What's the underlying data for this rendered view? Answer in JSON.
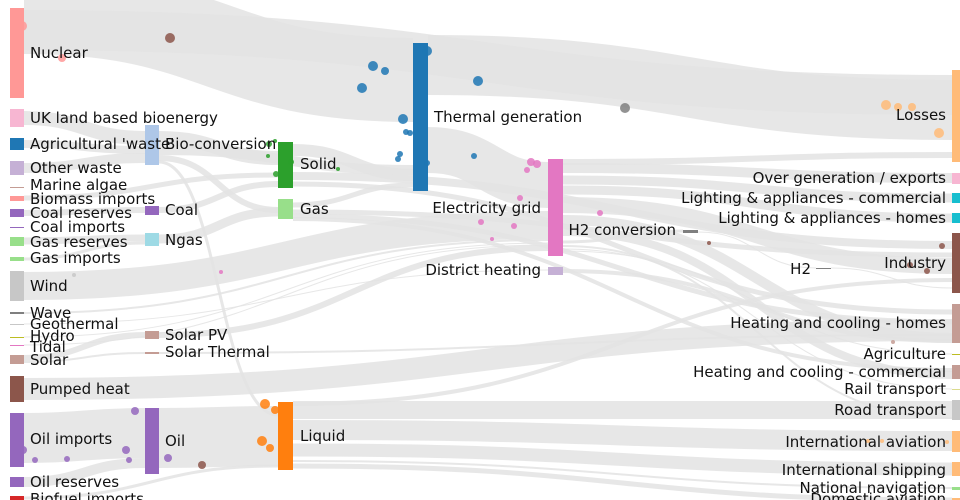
{
  "diagram": {
    "type": "sankey",
    "link_color": "#e3e3e3",
    "nodes": [
      {
        "id": "nuclear",
        "label": "Nuclear",
        "color": "#ff9896"
      },
      {
        "id": "uk-land-based-bioenergy",
        "label": "UK land based bioenergy",
        "color": "#f7b6d2"
      },
      {
        "id": "agricultural-waste",
        "label": "Agricultural 'waste'",
        "color": "#1f77b4"
      },
      {
        "id": "other-waste",
        "label": "Other waste",
        "color": "#c5b0d5"
      },
      {
        "id": "marine-algae",
        "label": "Marine algae",
        "color": "#c49c94"
      },
      {
        "id": "biomass-imports",
        "label": "Biomass imports",
        "color": "#ff9896"
      },
      {
        "id": "coal-reserves",
        "label": "Coal reserves",
        "color": "#9467bd"
      },
      {
        "id": "coal-imports",
        "label": "Coal imports",
        "color": "#9467bd"
      },
      {
        "id": "gas-reserves",
        "label": "Gas reserves",
        "color": "#98df8a"
      },
      {
        "id": "gas-imports",
        "label": "Gas imports",
        "color": "#98df8a"
      },
      {
        "id": "wind",
        "label": "Wind",
        "color": "#c7c7c7"
      },
      {
        "id": "wave",
        "label": "Wave",
        "color": "#7f7f7f"
      },
      {
        "id": "geothermal",
        "label": "Geothermal",
        "color": "#c7c7c7"
      },
      {
        "id": "hydro",
        "label": "Hydro",
        "color": "#bcbd22"
      },
      {
        "id": "tidal",
        "label": "Tidal",
        "color": "#e377c2"
      },
      {
        "id": "solar",
        "label": "Solar",
        "color": "#c49c94"
      },
      {
        "id": "pumped-heat",
        "label": "Pumped heat",
        "color": "#8c564b"
      },
      {
        "id": "oil-imports",
        "label": "Oil imports",
        "color": "#9467bd"
      },
      {
        "id": "oil-reserves",
        "label": "Oil reserves",
        "color": "#9467bd"
      },
      {
        "id": "biofuel-imports",
        "label": "Biofuel imports",
        "color": "#d62728"
      },
      {
        "id": "bio-conversion",
        "label": "Bio-conversion",
        "color": "#aec7e8"
      },
      {
        "id": "coal",
        "label": "Coal",
        "color": "#9467bd"
      },
      {
        "id": "ngas",
        "label": "Ngas",
        "color": "#9edae5"
      },
      {
        "id": "solar-pv",
        "label": "Solar PV",
        "color": "#c49c94"
      },
      {
        "id": "solar-thermal",
        "label": "Solar Thermal",
        "color": "#c49c94"
      },
      {
        "id": "oil",
        "label": "Oil",
        "color": "#9467bd"
      },
      {
        "id": "solid",
        "label": "Solid",
        "color": "#2ca02c"
      },
      {
        "id": "gas",
        "label": "Gas",
        "color": "#98df8a"
      },
      {
        "id": "liquid",
        "label": "Liquid",
        "color": "#ff7f0e"
      },
      {
        "id": "thermal-generation",
        "label": "Thermal generation",
        "color": "#1f77b4"
      },
      {
        "id": "electricity-grid",
        "label": "Electricity grid",
        "color": "#e377c2"
      },
      {
        "id": "district-heating",
        "label": "District heating",
        "color": "#c5b0d5"
      },
      {
        "id": "h2-conversion",
        "label": "H2 conversion",
        "color": "#7f7f7f"
      },
      {
        "id": "h2",
        "label": "H2",
        "color": "#7f7f7f"
      },
      {
        "id": "losses",
        "label": "Losses",
        "color": "#ffbb78"
      },
      {
        "id": "over-generation-exports",
        "label": "Over generation / exports",
        "color": "#f7b6d2"
      },
      {
        "id": "lighting-appliances-commercial",
        "label": "Lighting & appliances - commercial",
        "color": "#17becf"
      },
      {
        "id": "lighting-appliances-homes",
        "label": "Lighting & appliances - homes",
        "color": "#17becf"
      },
      {
        "id": "industry",
        "label": "Industry",
        "color": "#8c564b"
      },
      {
        "id": "heating-cooling-homes",
        "label": "Heating and cooling - homes",
        "color": "#c49c94"
      },
      {
        "id": "agriculture",
        "label": "Agriculture",
        "color": "#bcbd22"
      },
      {
        "id": "heating-cooling-commercial",
        "label": "Heating and cooling - commercial",
        "color": "#c49c94"
      },
      {
        "id": "rail-transport",
        "label": "Rail transport",
        "color": "#dbdb8d"
      },
      {
        "id": "road-transport",
        "label": "Road transport",
        "color": "#c7c7c7"
      },
      {
        "id": "international-aviation",
        "label": "International aviation",
        "color": "#ffbb78"
      },
      {
        "id": "international-shipping",
        "label": "International shipping",
        "color": "#ffbb78"
      },
      {
        "id": "national-navigation",
        "label": "National navigation",
        "color": "#98df8a"
      },
      {
        "id": "domestic-aviation",
        "label": "Domestic aviation",
        "color": "#ffbb78"
      }
    ]
  }
}
